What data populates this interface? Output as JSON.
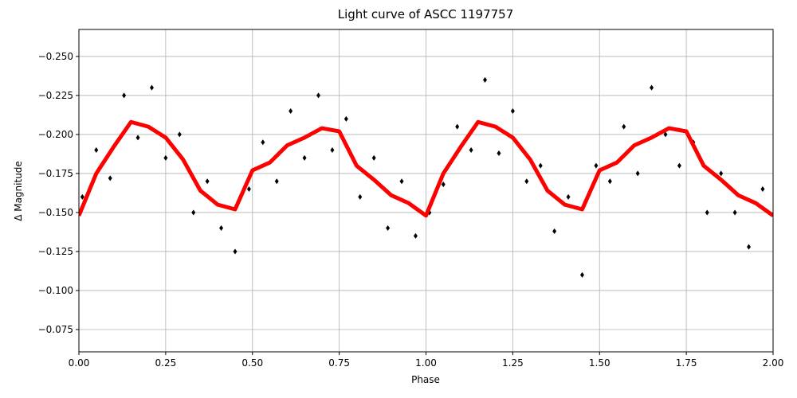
{
  "chart_data": {
    "type": "scatter",
    "title": "Light curve of ASCC 1197757",
    "x_label": "Phase",
    "y_label": "Δ Magnitude",
    "xlim": [
      0,
      2
    ],
    "ylim": [
      -0.0607,
      -0.2673
    ],
    "xticks": [
      {
        "value": 0,
        "label": "0.00"
      },
      {
        "value": 0.25,
        "label": "0.25"
      },
      {
        "value": 0.5,
        "label": "0.50"
      },
      {
        "value": 0.75,
        "label": "0.75"
      },
      {
        "value": 1,
        "label": "1.00"
      },
      {
        "value": 1.25,
        "label": "1.25"
      },
      {
        "value": 1.5,
        "label": "1.50"
      },
      {
        "value": 1.75,
        "label": "1.75"
      },
      {
        "value": 2,
        "label": "2.00"
      }
    ],
    "yticks": [
      {
        "value": -0.25,
        "label": "−0.250"
      },
      {
        "value": -0.225,
        "label": "−0.225"
      },
      {
        "value": -0.2,
        "label": "−0.200"
      },
      {
        "value": -0.175,
        "label": "−0.175"
      },
      {
        "value": -0.15,
        "label": "−0.150"
      },
      {
        "value": -0.125,
        "label": "−0.125"
      },
      {
        "value": -0.1,
        "label": "−0.100"
      },
      {
        "value": -0.075,
        "label": "−0.075"
      }
    ],
    "grid": true,
    "series": [
      {
        "kind": "points",
        "color": "#000000",
        "x": [
          0.01,
          0.05,
          0.09,
          0.13,
          0.17,
          0.21,
          0.25,
          0.29,
          0.33,
          0.37,
          0.41,
          0.45,
          0.49,
          0.53,
          0.57,
          0.61,
          0.65,
          0.69,
          0.73,
          0.77,
          0.81,
          0.85,
          0.89,
          0.93,
          0.97,
          1.01,
          1.05,
          1.09,
          1.13,
          1.17,
          1.21,
          1.25,
          1.29,
          1.33,
          1.37,
          1.41,
          1.45,
          1.49,
          1.53,
          1.57,
          1.61,
          1.65,
          1.69,
          1.73,
          1.77,
          1.81,
          1.85,
          1.89,
          1.93,
          1.97
        ],
        "values": [
          -0.16,
          -0.19,
          -0.172,
          -0.225,
          -0.198,
          -0.23,
          -0.185,
          -0.2,
          -0.15,
          -0.17,
          -0.14,
          -0.125,
          -0.165,
          -0.195,
          -0.17,
          -0.215,
          -0.185,
          -0.225,
          -0.19,
          -0.21,
          -0.16,
          -0.185,
          -0.14,
          -0.17,
          -0.135,
          -0.15,
          -0.168,
          -0.205,
          -0.19,
          -0.235,
          -0.188,
          -0.215,
          -0.17,
          -0.18,
          -0.138,
          -0.16,
          -0.11,
          -0.18,
          -0.17,
          -0.205,
          -0.175,
          -0.23,
          -0.2,
          -0.18,
          -0.195,
          -0.15,
          -0.175,
          -0.15,
          -0.128,
          -0.165
        ]
      },
      {
        "kind": "line",
        "color": "#ff0000",
        "x": [
          0,
          0.05,
          0.1,
          0.15,
          0.2,
          0.25,
          0.3,
          0.35,
          0.4,
          0.45,
          0.5,
          0.55,
          0.6,
          0.65,
          0.7,
          0.75,
          0.8,
          0.85,
          0.9,
          0.95,
          1,
          1.05,
          1.1,
          1.15,
          1.2,
          1.25,
          1.3,
          1.35,
          1.4,
          1.45,
          1.5,
          1.55,
          1.6,
          1.65,
          1.7,
          1.75,
          1.8,
          1.85,
          1.9,
          1.95,
          2
        ],
        "values": [
          -0.148,
          -0.175,
          -0.192,
          -0.208,
          -0.205,
          -0.198,
          -0.184,
          -0.164,
          -0.155,
          -0.152,
          -0.177,
          -0.182,
          -0.193,
          -0.198,
          -0.204,
          -0.202,
          -0.18,
          -0.171,
          -0.161,
          -0.156,
          -0.148,
          -0.175,
          -0.192,
          -0.208,
          -0.205,
          -0.198,
          -0.184,
          -0.164,
          -0.155,
          -0.152,
          -0.177,
          -0.182,
          -0.193,
          -0.198,
          -0.204,
          -0.202,
          -0.18,
          -0.171,
          -0.161,
          -0.156,
          -0.148
        ]
      }
    ]
  }
}
